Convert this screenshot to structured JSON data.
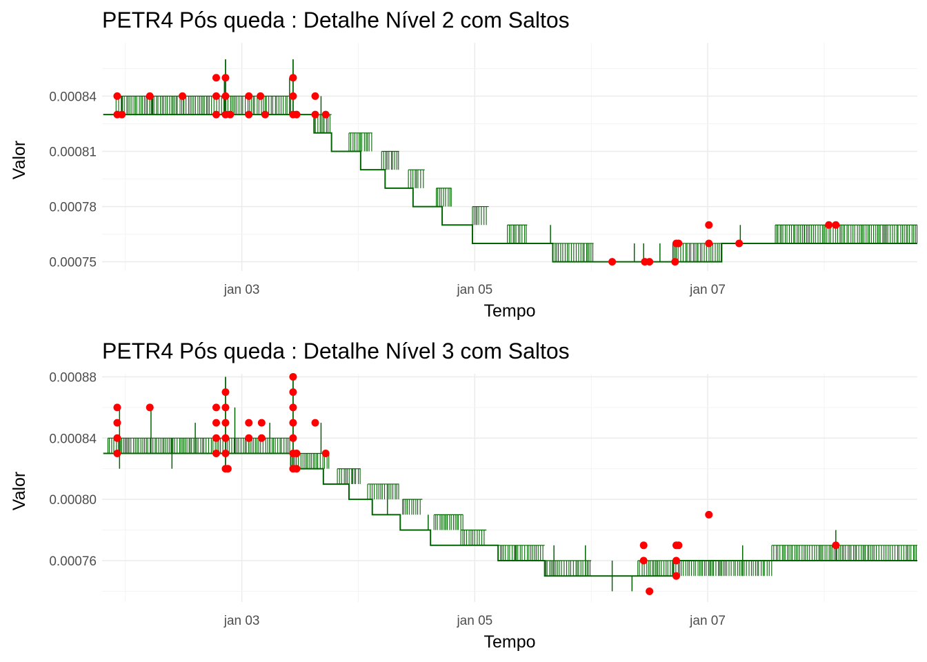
{
  "chart_data": [
    {
      "type": "line",
      "title": "PETR4 Pós queda : Detalhe Nível 2 com Saltos",
      "xlabel": "Tempo",
      "ylabel": "Valor",
      "xlim_days": [
        1.8,
        8.8
      ],
      "ylim": [
        0.000745,
        0.000869
      ],
      "x_ticks": [
        {
          "day": 3,
          "label": "jan 03"
        },
        {
          "day": 5,
          "label": "jan 05"
        },
        {
          "day": 7,
          "label": "jan 07"
        }
      ],
      "y_ticks": [
        {
          "value": 0.00075,
          "label": "0.00075"
        },
        {
          "value": 0.00078,
          "label": "0.00078"
        },
        {
          "value": 0.00081,
          "label": "0.00081"
        },
        {
          "value": 0.00084,
          "label": "0.00084"
        }
      ],
      "line_color": "#006400",
      "jump_color": "#ff0000",
      "series": [
        {
          "base_segments": [
            {
              "x0": 1.81,
              "x1": 1.92,
              "y": 0.00083
            },
            {
              "x0": 1.92,
              "x1": 3.42,
              "y": 0.00083
            },
            {
              "x0": 3.42,
              "x1": 3.62,
              "y": 0.00083
            },
            {
              "x0": 3.62,
              "x1": 3.77,
              "y": 0.00082
            },
            {
              "x0": 3.77,
              "x1": 4.02,
              "y": 0.00081
            },
            {
              "x0": 4.02,
              "x1": 4.23,
              "y": 0.0008
            },
            {
              "x0": 4.23,
              "x1": 4.47,
              "y": 0.00079
            },
            {
              "x0": 4.47,
              "x1": 4.72,
              "y": 0.00078
            },
            {
              "x0": 4.72,
              "x1": 4.98,
              "y": 0.00077
            },
            {
              "x0": 4.98,
              "x1": 5.28,
              "y": 0.00076
            },
            {
              "x0": 5.28,
              "x1": 5.67,
              "y": 0.00076
            },
            {
              "x0": 5.67,
              "x1": 6.02,
              "y": 0.00075
            },
            {
              "x0": 6.02,
              "x1": 6.7,
              "y": 0.00075
            },
            {
              "x0": 6.7,
              "x1": 7.12,
              "y": 0.00075
            },
            {
              "x0": 7.12,
              "x1": 8.6,
              "y": 0.00076
            },
            {
              "x0": 8.6,
              "x1": 8.8,
              "y": 0.00076
            }
          ],
          "dense_blocks": [
            {
              "x0": 1.92,
              "x1": 3.42,
              "y_low": 0.00083,
              "y_high": 0.00084
            },
            {
              "x0": 3.62,
              "x1": 3.77,
              "y_low": 0.00082,
              "y_high": 0.00083
            },
            {
              "x0": 3.92,
              "x1": 4.12,
              "y_low": 0.00081,
              "y_high": 0.00082
            },
            {
              "x0": 4.2,
              "x1": 4.35,
              "y_low": 0.0008,
              "y_high": 0.00081
            },
            {
              "x0": 4.43,
              "x1": 4.57,
              "y_low": 0.00079,
              "y_high": 0.0008
            },
            {
              "x0": 4.67,
              "x1": 4.8,
              "y_low": 0.00078,
              "y_high": 0.00079
            },
            {
              "x0": 4.98,
              "x1": 5.12,
              "y_low": 0.00077,
              "y_high": 0.00078
            },
            {
              "x0": 5.28,
              "x1": 5.45,
              "y_low": 0.00076,
              "y_high": 0.00077
            },
            {
              "x0": 5.67,
              "x1": 6.02,
              "y_low": 0.00075,
              "y_high": 0.00076
            },
            {
              "x0": 6.7,
              "x1": 7.12,
              "y_low": 0.00075,
              "y_high": 0.00076
            },
            {
              "x0": 7.58,
              "x1": 8.8,
              "y_low": 0.00076,
              "y_high": 0.00077
            }
          ],
          "spikes": [
            {
              "x": 1.97,
              "y0": 0.00083,
              "y1": 0.00084
            },
            {
              "x": 2.23,
              "y0": 0.00083,
              "y1": 0.00084
            },
            {
              "x": 2.5,
              "y0": 0.00083,
              "y1": 0.00084
            },
            {
              "x": 2.85,
              "y0": 0.00083,
              "y1": 0.00085
            },
            {
              "x": 3.41,
              "y0": 0.00083,
              "y1": 0.00085
            },
            {
              "x": 3.68,
              "y0": 0.00083,
              "y1": 0.00084
            },
            {
              "x": 5.65,
              "y0": 0.00076,
              "y1": 0.00077
            },
            {
              "x": 6.37,
              "y0": 0.00075,
              "y1": 0.00076
            },
            {
              "x": 6.45,
              "y0": 0.00075,
              "y1": 0.00076
            },
            {
              "x": 6.59,
              "y0": 0.00075,
              "y1": 0.00076
            },
            {
              "x": 7.28,
              "y0": 0.00076,
              "y1": 0.00077
            },
            {
              "x": 7.83,
              "y0": 0.00076,
              "y1": 0.00077
            }
          ],
          "spikes_tall": [
            {
              "x": 2.86,
              "y0": 0.00083,
              "y1": 0.00086
            },
            {
              "x": 3.44,
              "y0": 0.00083,
              "y1": 0.00086
            }
          ]
        }
      ],
      "jumps": [
        {
          "x": 1.93,
          "y": 0.00084
        },
        {
          "x": 1.93,
          "y": 0.00083
        },
        {
          "x": 1.97,
          "y": 0.00083
        },
        {
          "x": 2.21,
          "y": 0.00084
        },
        {
          "x": 2.49,
          "y": 0.00084
        },
        {
          "x": 2.78,
          "y": 0.00085
        },
        {
          "x": 2.78,
          "y": 0.00084
        },
        {
          "x": 2.78,
          "y": 0.00083
        },
        {
          "x": 3.06,
          "y": 0.00084
        },
        {
          "x": 3.06,
          "y": 0.00083
        },
        {
          "x": 2.86,
          "y": 0.00085
        },
        {
          "x": 2.86,
          "y": 0.00084
        },
        {
          "x": 2.86,
          "y": 0.00083
        },
        {
          "x": 2.9,
          "y": 0.00083
        },
        {
          "x": 3.16,
          "y": 0.00084
        },
        {
          "x": 3.2,
          "y": 0.00083
        },
        {
          "x": 3.44,
          "y": 0.00085
        },
        {
          "x": 3.44,
          "y": 0.00084
        },
        {
          "x": 3.44,
          "y": 0.00083
        },
        {
          "x": 3.47,
          "y": 0.00083
        },
        {
          "x": 3.63,
          "y": 0.00084
        },
        {
          "x": 3.63,
          "y": 0.00083
        },
        {
          "x": 3.72,
          "y": 0.00083
        },
        {
          "x": 6.18,
          "y": 0.00075
        },
        {
          "x": 6.46,
          "y": 0.00075
        },
        {
          "x": 6.5,
          "y": 0.00075
        },
        {
          "x": 6.72,
          "y": 0.00075
        },
        {
          "x": 6.73,
          "y": 0.00076
        },
        {
          "x": 6.75,
          "y": 0.00076
        },
        {
          "x": 7.01,
          "y": 0.00076
        },
        {
          "x": 7.01,
          "y": 0.00077
        },
        {
          "x": 7.27,
          "y": 0.00076
        },
        {
          "x": 8.04,
          "y": 0.00077
        },
        {
          "x": 8.1,
          "y": 0.00077
        }
      ]
    },
    {
      "type": "line",
      "title": "PETR4 Pós queda : Detalhe Nível 3 com Saltos",
      "xlabel": "Tempo",
      "ylabel": "Valor",
      "xlim_days": [
        1.8,
        8.8
      ],
      "ylim": [
        0.000733,
        0.000882
      ],
      "x_ticks": [
        {
          "day": 3,
          "label": "jan 03"
        },
        {
          "day": 5,
          "label": "jan 05"
        },
        {
          "day": 7,
          "label": "jan 07"
        }
      ],
      "y_ticks": [
        {
          "value": 0.00076,
          "label": "0.00076"
        },
        {
          "value": 0.0008,
          "label": "0.00080"
        },
        {
          "value": 0.00084,
          "label": "0.00084"
        },
        {
          "value": 0.00088,
          "label": "0.00088"
        }
      ],
      "line_color": "#006400",
      "jump_color": "#ff0000",
      "series": [
        {
          "base_segments": [
            {
              "x0": 1.81,
              "x1": 3.42,
              "y": 0.00083
            },
            {
              "x0": 3.42,
              "x1": 3.7,
              "y": 0.00082
            },
            {
              "x0": 3.7,
              "x1": 3.92,
              "y": 0.00081
            },
            {
              "x0": 3.92,
              "x1": 4.12,
              "y": 0.0008
            },
            {
              "x0": 4.12,
              "x1": 4.36,
              "y": 0.00079
            },
            {
              "x0": 4.36,
              "x1": 4.62,
              "y": 0.00078
            },
            {
              "x0": 4.62,
              "x1": 4.86,
              "y": 0.00077
            },
            {
              "x0": 4.86,
              "x1": 5.2,
              "y": 0.00077
            },
            {
              "x0": 5.2,
              "x1": 5.6,
              "y": 0.00076
            },
            {
              "x0": 5.6,
              "x1": 6.0,
              "y": 0.00075
            },
            {
              "x0": 6.0,
              "x1": 6.7,
              "y": 0.00075
            },
            {
              "x0": 6.7,
              "x1": 8.8,
              "y": 0.00076
            }
          ],
          "dense_blocks": [
            {
              "x0": 1.85,
              "x1": 3.42,
              "y_low": 0.00083,
              "y_high": 0.00084
            },
            {
              "x0": 3.42,
              "x1": 3.75,
              "y_low": 0.00082,
              "y_high": 0.00083
            },
            {
              "x0": 3.82,
              "x1": 4.02,
              "y_low": 0.00081,
              "y_high": 0.00082
            },
            {
              "x0": 4.08,
              "x1": 4.35,
              "y_low": 0.0008,
              "y_high": 0.00081
            },
            {
              "x0": 4.38,
              "x1": 4.55,
              "y_low": 0.00079,
              "y_high": 0.0008
            },
            {
              "x0": 4.65,
              "x1": 4.9,
              "y_low": 0.00078,
              "y_high": 0.00079
            },
            {
              "x0": 4.88,
              "x1": 5.1,
              "y_low": 0.00077,
              "y_high": 0.00078
            },
            {
              "x0": 5.2,
              "x1": 5.6,
              "y_low": 0.00076,
              "y_high": 0.00077
            },
            {
              "x0": 5.6,
              "x1": 6.0,
              "y_low": 0.00075,
              "y_high": 0.00076
            },
            {
              "x0": 6.4,
              "x1": 7.55,
              "y_low": 0.00075,
              "y_high": 0.00076
            },
            {
              "x0": 7.55,
              "x1": 8.8,
              "y_low": 0.00076,
              "y_high": 0.00077
            }
          ],
          "spikes": [
            {
              "x": 1.95,
              "y0": 0.00082,
              "y1": 0.00086
            },
            {
              "x": 2.22,
              "y0": 0.00083,
              "y1": 0.00086
            },
            {
              "x": 2.4,
              "y0": 0.00082,
              "y1": 0.00084
            },
            {
              "x": 2.6,
              "y0": 0.00083,
              "y1": 0.00085
            },
            {
              "x": 2.94,
              "y0": 0.00083,
              "y1": 0.00086
            },
            {
              "x": 3.24,
              "y0": 0.00083,
              "y1": 0.00085
            },
            {
              "x": 3.68,
              "y0": 0.00083,
              "y1": 0.00085
            },
            {
              "x": 3.95,
              "y0": 0.00081,
              "y1": 0.00082
            },
            {
              "x": 4.25,
              "y0": 0.00079,
              "y1": 0.00081
            },
            {
              "x": 4.6,
              "y0": 0.00078,
              "y1": 0.00079
            },
            {
              "x": 5.35,
              "y0": 0.00076,
              "y1": 0.00077
            },
            {
              "x": 5.68,
              "y0": 0.00075,
              "y1": 0.00077
            },
            {
              "x": 5.95,
              "y0": 0.00075,
              "y1": 0.00077
            },
            {
              "x": 6.18,
              "y0": 0.00074,
              "y1": 0.00076
            },
            {
              "x": 6.35,
              "y0": 0.00074,
              "y1": 0.00075
            },
            {
              "x": 7.3,
              "y0": 0.00075,
              "y1": 0.00077
            },
            {
              "x": 8.1,
              "y0": 0.00076,
              "y1": 0.00078
            }
          ],
          "spikes_tall": [
            {
              "x": 2.86,
              "y0": 0.00082,
              "y1": 0.00088
            },
            {
              "x": 3.44,
              "y0": 0.00082,
              "y1": 0.00088
            }
          ]
        }
      ],
      "jumps": [
        {
          "x": 1.93,
          "y": 0.00086
        },
        {
          "x": 1.93,
          "y": 0.00085
        },
        {
          "x": 1.93,
          "y": 0.00084
        },
        {
          "x": 1.93,
          "y": 0.00083
        },
        {
          "x": 2.21,
          "y": 0.00086
        },
        {
          "x": 2.78,
          "y": 0.00086
        },
        {
          "x": 2.78,
          "y": 0.00085
        },
        {
          "x": 2.78,
          "y": 0.00084
        },
        {
          "x": 2.78,
          "y": 0.00083
        },
        {
          "x": 3.06,
          "y": 0.00085
        },
        {
          "x": 3.06,
          "y": 0.00084
        },
        {
          "x": 2.86,
          "y": 0.00087
        },
        {
          "x": 2.86,
          "y": 0.00086
        },
        {
          "x": 2.86,
          "y": 0.00085
        },
        {
          "x": 2.86,
          "y": 0.00084
        },
        {
          "x": 2.86,
          "y": 0.00083
        },
        {
          "x": 2.86,
          "y": 0.00082
        },
        {
          "x": 2.88,
          "y": 0.00082
        },
        {
          "x": 3.17,
          "y": 0.00085
        },
        {
          "x": 3.17,
          "y": 0.00084
        },
        {
          "x": 3.44,
          "y": 0.00088
        },
        {
          "x": 3.44,
          "y": 0.00087
        },
        {
          "x": 3.44,
          "y": 0.00086
        },
        {
          "x": 3.44,
          "y": 0.00085
        },
        {
          "x": 3.44,
          "y": 0.00084
        },
        {
          "x": 3.44,
          "y": 0.00083
        },
        {
          "x": 3.44,
          "y": 0.00082
        },
        {
          "x": 3.47,
          "y": 0.00083
        },
        {
          "x": 3.47,
          "y": 0.00082
        },
        {
          "x": 3.63,
          "y": 0.00085
        },
        {
          "x": 3.72,
          "y": 0.00083
        },
        {
          "x": 6.45,
          "y": 0.00077
        },
        {
          "x": 6.45,
          "y": 0.00076
        },
        {
          "x": 6.5,
          "y": 0.00074
        },
        {
          "x": 6.73,
          "y": 0.00077
        },
        {
          "x": 6.75,
          "y": 0.00077
        },
        {
          "x": 6.73,
          "y": 0.00076
        },
        {
          "x": 6.73,
          "y": 0.00075
        },
        {
          "x": 7.01,
          "y": 0.00079
        },
        {
          "x": 8.1,
          "y": 0.00077
        }
      ]
    }
  ]
}
